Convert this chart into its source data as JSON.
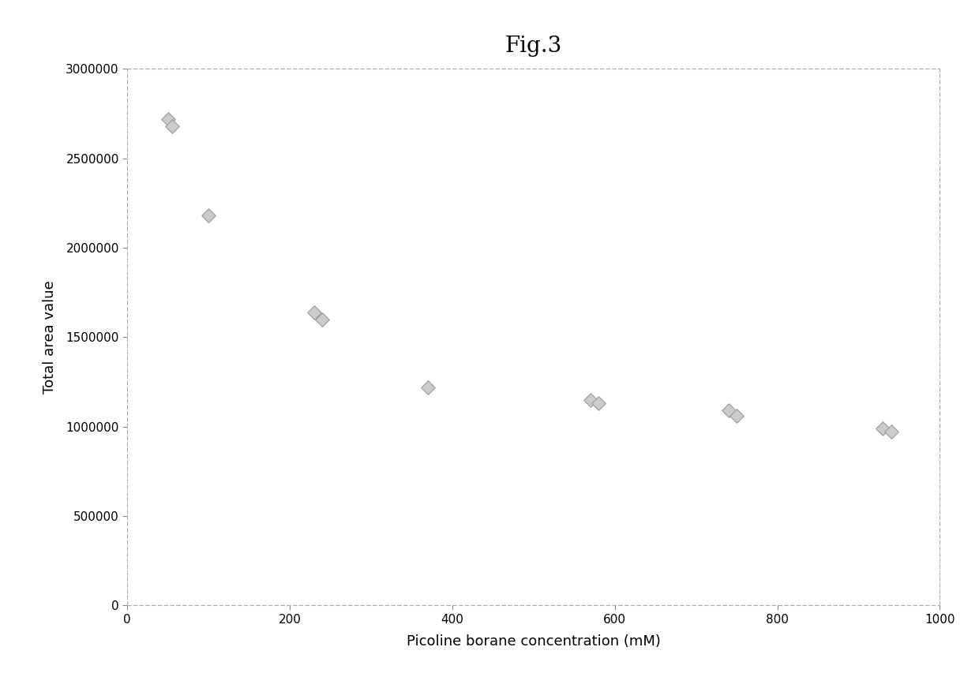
{
  "title": "Fig.3",
  "xlabel": "Picoline borane concentration (mM)",
  "ylabel": "Total area value",
  "x": [
    50,
    55,
    100,
    230,
    240,
    370,
    570,
    580,
    740,
    750,
    930,
    940
  ],
  "y": [
    2720000,
    2680000,
    2180000,
    1640000,
    1600000,
    1220000,
    1150000,
    1130000,
    1090000,
    1060000,
    990000,
    970000
  ],
  "xlim": [
    0,
    1000
  ],
  "ylim": [
    0,
    3000000
  ],
  "xticks": [
    0,
    200,
    400,
    600,
    800,
    1000
  ],
  "yticks": [
    0,
    500000,
    1000000,
    1500000,
    2000000,
    2500000,
    3000000
  ],
  "marker": "D",
  "marker_facecolor": "#cccccc",
  "marker_edgecolor": "#999999",
  "marker_size": 80,
  "marker_linewidth": 0.8,
  "background_color": "#ffffff",
  "title_fontsize": 20,
  "label_fontsize": 13,
  "tick_fontsize": 11,
  "spine_color": "#aaaaaa",
  "spine_linewidth": 0.8
}
